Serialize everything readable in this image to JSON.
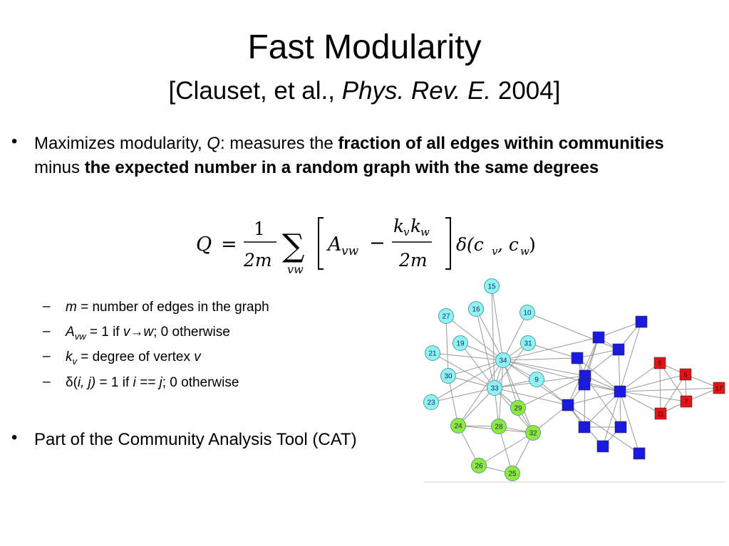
{
  "title": "Fast Modularity",
  "subtitle": {
    "prefix": "[Clauset, et al., ",
    "journal": "Phys. Rev. E.",
    "suffix": " 2004]"
  },
  "bullet1": {
    "t1": "Maximizes modularity, ",
    "q": "Q",
    "t2": ": measures the ",
    "b1": "fraction of all edges within communities",
    "t3": " minus ",
    "b2": "the expected number in a random graph with the same degrees"
  },
  "formula": {
    "Q": "Q",
    "eq": "=",
    "one": "1",
    "twom": "2m",
    "sigma": "∑",
    "vw": "vw",
    "A": "A",
    "Asub": "vw",
    "minus": "−",
    "kvkw": "k",
    "kv": "v",
    "kw": "w",
    "delta": "δ(c",
    "cv": "v",
    "comma": ", c",
    "cw": "w",
    "close": ")"
  },
  "subbullets": [
    {
      "italic": "m",
      "rest": " = number of edges in the graph"
    },
    {
      "italic": "A",
      "subscript": "vw",
      "rest1": " = 1 if ",
      "italic2": "v→w",
      "rest2": "; 0 otherwise"
    },
    {
      "italic": "k",
      "subscript": "v",
      "rest1": " = degree of vertex ",
      "italic2": "v"
    },
    {
      "p1": "δ(",
      "italic": "i, j)",
      "rest1": " = 1 if ",
      "italic2": "i == j",
      "rest2": "; 0 otherwise"
    }
  ],
  "bullet2": "Part of the Community Analysis Tool (CAT)",
  "graph": {
    "colors": {
      "cyan": "#8ef3f3",
      "green": "#8fe93a",
      "blue": "#1a1ae0",
      "red": "#e01515"
    },
    "cyan_nodes": [
      "15",
      "16",
      "10",
      "27",
      "19",
      "31",
      "21",
      "34",
      "30",
      "9",
      "33",
      "23"
    ],
    "green_nodes": [
      "24",
      "28",
      "29",
      "32",
      "26",
      "25"
    ],
    "blue_nodes": [
      "blue-1",
      "blue-2",
      "blue-3",
      "blue-4",
      "blue-5",
      "blue-6",
      "blue-7",
      "blue-8",
      "blue-9",
      "blue-10",
      "blue-11",
      "blue-12"
    ],
    "red_nodes": [
      "5",
      "6",
      "17",
      "11",
      "7"
    ]
  }
}
